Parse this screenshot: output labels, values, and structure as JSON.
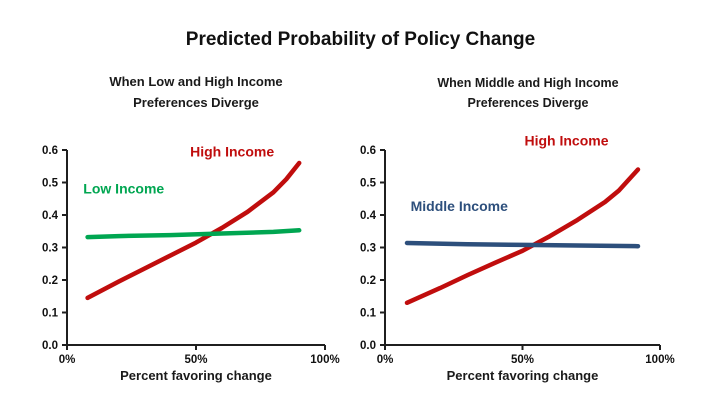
{
  "figure": {
    "title": "Predicted Probability of Policy Change"
  },
  "chart_data": [
    {
      "type": "line",
      "subtitle_line1": "When Low and High Income",
      "subtitle_line2": "Preferences Diverge",
      "xlabel": "Percent favoring change",
      "xlim": [
        0,
        100
      ],
      "ylim": [
        0,
        0.6
      ],
      "grid": false,
      "legend_position": "inline-labels",
      "x_ticks": [
        {
          "value": 0,
          "label": "0%"
        },
        {
          "value": 50,
          "label": "50%"
        },
        {
          "value": 100,
          "label": "100%"
        }
      ],
      "y_ticks": [
        0.0,
        0.1,
        0.2,
        0.3,
        0.4,
        0.5,
        0.6
      ],
      "series": [
        {
          "name": "High Income",
          "color": "#c00d0d",
          "x": [
            8,
            20,
            30,
            40,
            50,
            60,
            70,
            80,
            85,
            90
          ],
          "y": [
            0.145,
            0.195,
            0.235,
            0.275,
            0.315,
            0.36,
            0.41,
            0.47,
            0.51,
            0.56
          ],
          "label": {
            "text": "High Income",
            "x": 64,
            "y": 0.595
          }
        },
        {
          "name": "Low Income",
          "color": "#00a651",
          "x": [
            8,
            20,
            40,
            60,
            80,
            90
          ],
          "y": [
            0.332,
            0.335,
            0.338,
            0.343,
            0.348,
            0.353
          ],
          "label": {
            "text": "Low Income",
            "x": 22,
            "y": 0.482
          }
        }
      ]
    },
    {
      "type": "line",
      "subtitle_line1": "When Middle and High Income",
      "subtitle_line2": "Preferences Diverge",
      "xlabel": "Percent favoring change",
      "xlim": [
        0,
        100
      ],
      "ylim": [
        0,
        0.6
      ],
      "grid": false,
      "legend_position": "inline-labels",
      "x_ticks": [
        {
          "value": 0,
          "label": "0%"
        },
        {
          "value": 50,
          "label": "50%"
        },
        {
          "value": 100,
          "label": "100%"
        }
      ],
      "y_ticks": [
        0.0,
        0.1,
        0.2,
        0.3,
        0.4,
        0.5,
        0.6
      ],
      "series": [
        {
          "name": "High Income",
          "color": "#c00d0d",
          "x": [
            8,
            20,
            30,
            40,
            50,
            60,
            70,
            80,
            85,
            92
          ],
          "y": [
            0.13,
            0.175,
            0.215,
            0.253,
            0.29,
            0.335,
            0.385,
            0.44,
            0.475,
            0.54
          ],
          "label": {
            "text": "High Income",
            "x": 66,
            "y": 0.63
          }
        },
        {
          "name": "Middle Income",
          "color": "#2d4f7c",
          "x": [
            8,
            30,
            50,
            70,
            92
          ],
          "y": [
            0.314,
            0.31,
            0.308,
            0.306,
            0.304
          ],
          "label": {
            "text": "Middle Income",
            "x": 27,
            "y": 0.428
          }
        }
      ]
    }
  ]
}
